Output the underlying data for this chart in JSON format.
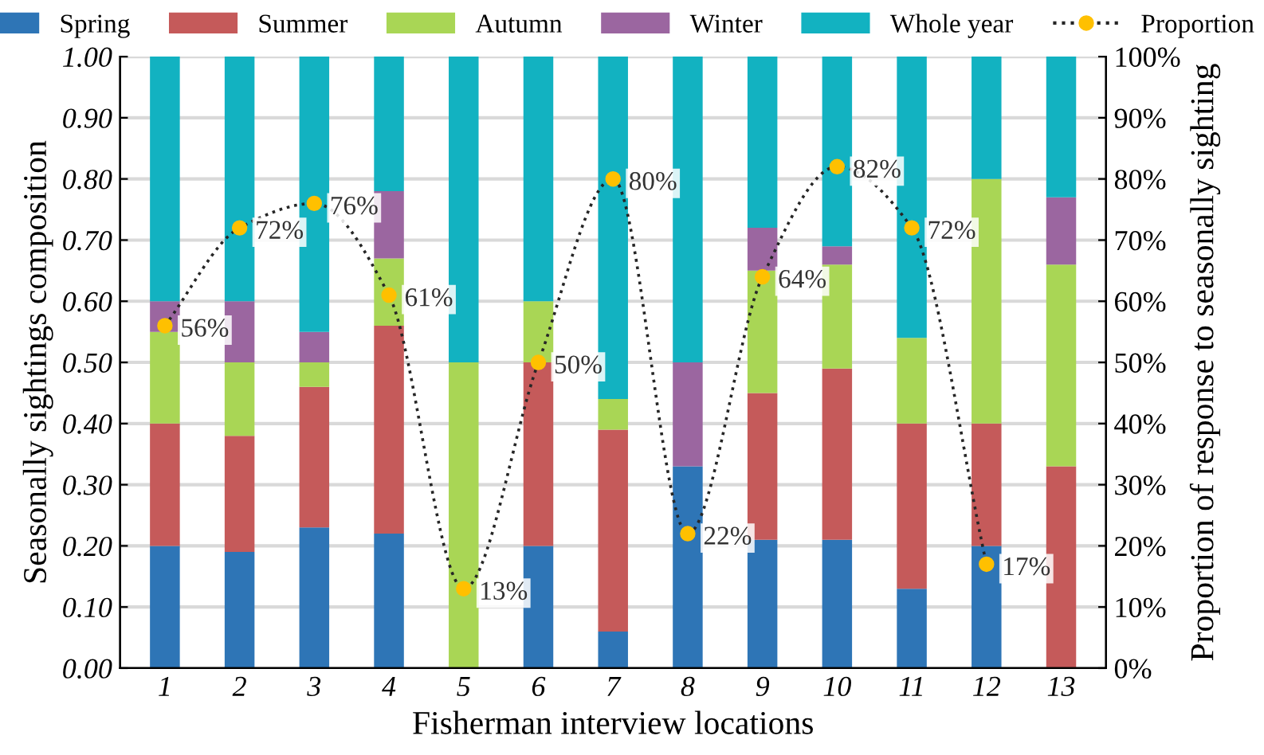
{
  "chart_data": {
    "type": "bar",
    "stacked": true,
    "xlabel": "Fisherman interview locations",
    "ylabel": "Seasonally sightings composition",
    "y2label": "Proportion of response to seasonally sighting",
    "categories": [
      "1",
      "2",
      "3",
      "4",
      "5",
      "6",
      "7",
      "8",
      "9",
      "10",
      "11",
      "12",
      "13"
    ],
    "series": [
      {
        "name": "Spring",
        "color": "#2e75b6",
        "values": [
          0.2,
          0.19,
          0.23,
          0.22,
          0,
          0.2,
          0.06,
          0.33,
          0.21,
          0.21,
          0.13,
          0.2,
          0
        ]
      },
      {
        "name": "Summer",
        "color": "#c55a5a",
        "values": [
          0.2,
          0.19,
          0.23,
          0.34,
          0,
          0.3,
          0.33,
          0,
          0.24,
          0.28,
          0.27,
          0.2,
          0.33
        ]
      },
      {
        "name": "Autumn",
        "color": "#a9d655",
        "values": [
          0.15,
          0.12,
          0.04,
          0.11,
          0.5,
          0.1,
          0.05,
          0,
          0.2,
          0.17,
          0.14,
          0.4,
          0.33
        ]
      },
      {
        "name": "Winter",
        "color": "#9b66a0",
        "values": [
          0.05,
          0.1,
          0.05,
          0.11,
          0,
          0,
          0,
          0.17,
          0.07,
          0.03,
          0,
          0,
          0.11
        ]
      },
      {
        "name": "Whole year",
        "color": "#12b2c1",
        "values": [
          0.4,
          0.4,
          0.45,
          0.22,
          0.5,
          0.4,
          0.56,
          0.5,
          0.28,
          0.31,
          0.46,
          0.2,
          0.23
        ]
      },
      {
        "name": "Proportion",
        "type": "line",
        "axis": "y2",
        "color": "#262626",
        "colors": [
          "#ffc000",
          "#ffc000",
          "#ffc000",
          "#ffc000",
          "#ffc000",
          "#ffc000",
          "#ffc000",
          "#ffc000",
          "#ffc000",
          "#ffc000",
          "#ffc000",
          "#ffc000",
          "#ffc000"
        ],
        "line_style": "dotted",
        "marker": "circle",
        "values": [
          56,
          72,
          76,
          61,
          13,
          50,
          80,
          22,
          64,
          82,
          72,
          17,
          null
        ],
        "value_labels": [
          "56%",
          "72%",
          "76%",
          "61%",
          "13%",
          "50%",
          "80%",
          "22%",
          "64%",
          "82%",
          "72%",
          "17%",
          null
        ]
      }
    ],
    "ylim": [
      0,
      1
    ],
    "yticks": [
      {
        "value": 0,
        "label": "0.00"
      },
      {
        "value": 0.1,
        "label": "0.10"
      },
      {
        "value": 0.2,
        "label": "0.20"
      },
      {
        "value": 0.3,
        "label": "0.30"
      },
      {
        "value": 0.4,
        "label": "0.40"
      },
      {
        "value": 0.5,
        "label": "0.50"
      },
      {
        "value": 0.6,
        "label": "0.60"
      },
      {
        "value": 0.7,
        "label": "0.70"
      },
      {
        "value": 0.8,
        "label": "0.80"
      },
      {
        "value": 0.9,
        "label": "0.90"
      },
      {
        "value": 1,
        "label": "1.00"
      }
    ],
    "y2lim": [
      0,
      100
    ],
    "y2ticks": [
      {
        "value": 0,
        "label": "0%"
      },
      {
        "value": 10,
        "label": "10%"
      },
      {
        "value": 20,
        "label": "20%"
      },
      {
        "value": 30,
        "label": "30%"
      },
      {
        "value": 40,
        "label": "40%"
      },
      {
        "value": 50,
        "label": "50%"
      },
      {
        "value": 60,
        "label": "60%"
      },
      {
        "value": 70,
        "label": "70%"
      },
      {
        "value": 80,
        "label": "80%"
      },
      {
        "value": 90,
        "label": "90%"
      },
      {
        "value": 100,
        "label": "100%"
      }
    ],
    "grid": "y",
    "legend": "top"
  }
}
